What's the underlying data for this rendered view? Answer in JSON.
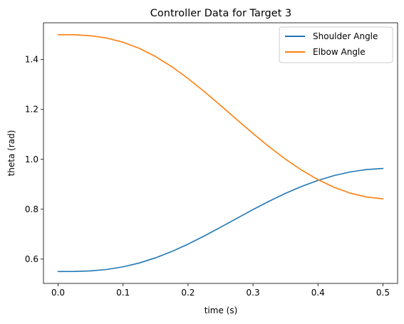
{
  "chart_data": {
    "type": "line",
    "title": "Controller Data for Target 3",
    "xlabel": "time (s)",
    "ylabel": "theta (rad)",
    "xlim": [
      -0.0225,
      0.5225
    ],
    "ylim": [
      0.5025,
      1.5475
    ],
    "grid": false,
    "legend_position": "top-right",
    "x": [
      0.0,
      0.025,
      0.05,
      0.075,
      0.1,
      0.125,
      0.15,
      0.175,
      0.2,
      0.225,
      0.25,
      0.275,
      0.3,
      0.325,
      0.35,
      0.375,
      0.4,
      0.425,
      0.45,
      0.475,
      0.5
    ],
    "x_ticks": [
      "0.0",
      "0.1",
      "0.2",
      "0.3",
      "0.4",
      "0.5"
    ],
    "y_ticks": [
      "0.6",
      "0.8",
      "1.0",
      "1.2",
      "1.4"
    ],
    "series": [
      {
        "name": "Shoulder Angle",
        "color": "#1f77b4",
        "values": [
          0.55,
          0.5504,
          0.5527,
          0.5585,
          0.5689,
          0.5844,
          0.6051,
          0.6305,
          0.66,
          0.6927,
          0.7275,
          0.7632,
          0.7985,
          0.8323,
          0.8637,
          0.8916,
          0.9155,
          0.935,
          0.9497,
          0.9592,
          0.9635
        ]
      },
      {
        "name": "Elbow Angle",
        "color": "#ff7f0e",
        "values": [
          1.5,
          1.4994,
          1.4957,
          1.4862,
          1.4695,
          1.445,
          1.4122,
          1.3715,
          1.324,
          1.2717,
          1.2163,
          1.1595,
          1.1035,
          1.0501,
          1.0006,
          0.9565,
          0.9186,
          0.8876,
          0.8642,
          0.8488,
          0.8418
        ]
      }
    ]
  }
}
